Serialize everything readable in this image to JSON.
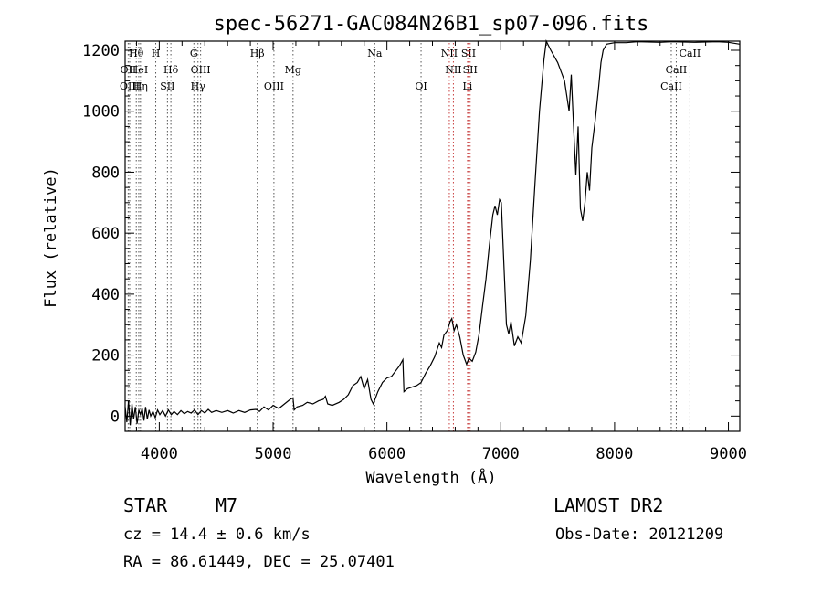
{
  "chart_data": {
    "type": "line",
    "title": "spec-56271-GAC084N26B1_sp07-096.fits",
    "xlabel": "Wavelength (Å)",
    "ylabel": "Flux (relative)",
    "xlim": [
      3700,
      9100
    ],
    "ylim": [
      -50,
      1230
    ],
    "x_ticks": [
      "4000",
      "5000",
      "6000",
      "7000",
      "8000",
      "9000"
    ],
    "y_ticks": [
      "0",
      "200",
      "400",
      "600",
      "800",
      "1000",
      "1200"
    ],
    "grid": false,
    "series": [
      {
        "color": "#000000",
        "points": [
          [
            3700,
            30
          ],
          [
            3715,
            -20
          ],
          [
            3730,
            50
          ],
          [
            3745,
            -30
          ],
          [
            3760,
            40
          ],
          [
            3775,
            -10
          ],
          [
            3790,
            30
          ],
          [
            3805,
            -25
          ],
          [
            3820,
            20
          ],
          [
            3835,
            5
          ],
          [
            3850,
            25
          ],
          [
            3865,
            -15
          ],
          [
            3880,
            30
          ],
          [
            3895,
            -10
          ],
          [
            3910,
            20
          ],
          [
            3925,
            0
          ],
          [
            3945,
            15
          ],
          [
            3965,
            -5
          ],
          [
            3985,
            20
          ],
          [
            4005,
            5
          ],
          [
            4030,
            18
          ],
          [
            4055,
            0
          ],
          [
            4080,
            20
          ],
          [
            4105,
            5
          ],
          [
            4130,
            15
          ],
          [
            4160,
            5
          ],
          [
            4190,
            18
          ],
          [
            4220,
            8
          ],
          [
            4250,
            15
          ],
          [
            4280,
            10
          ],
          [
            4310,
            20
          ],
          [
            4340,
            5
          ],
          [
            4370,
            18
          ],
          [
            4400,
            10
          ],
          [
            4430,
            22
          ],
          [
            4460,
            12
          ],
          [
            4500,
            18
          ],
          [
            4550,
            12
          ],
          [
            4600,
            18
          ],
          [
            4650,
            10
          ],
          [
            4700,
            18
          ],
          [
            4750,
            12
          ],
          [
            4800,
            20
          ],
          [
            4850,
            22
          ],
          [
            4880,
            15
          ],
          [
            4920,
            30
          ],
          [
            4960,
            20
          ],
          [
            5000,
            35
          ],
          [
            5050,
            25
          ],
          [
            5100,
            40
          ],
          [
            5150,
            55
          ],
          [
            5175,
            60
          ],
          [
            5185,
            20
          ],
          [
            5210,
            30
          ],
          [
            5260,
            35
          ],
          [
            5300,
            45
          ],
          [
            5350,
            40
          ],
          [
            5400,
            50
          ],
          [
            5440,
            55
          ],
          [
            5460,
            65
          ],
          [
            5480,
            40
          ],
          [
            5520,
            35
          ],
          [
            5580,
            45
          ],
          [
            5620,
            55
          ],
          [
            5660,
            70
          ],
          [
            5700,
            100
          ],
          [
            5740,
            110
          ],
          [
            5770,
            130
          ],
          [
            5800,
            90
          ],
          [
            5830,
            120
          ],
          [
            5860,
            55
          ],
          [
            5880,
            40
          ],
          [
            5920,
            80
          ],
          [
            5960,
            110
          ],
          [
            6000,
            125
          ],
          [
            6040,
            130
          ],
          [
            6080,
            150
          ],
          [
            6110,
            165
          ],
          [
            6140,
            185
          ],
          [
            6150,
            80
          ],
          [
            6180,
            90
          ],
          [
            6220,
            95
          ],
          [
            6260,
            100
          ],
          [
            6300,
            110
          ],
          [
            6340,
            140
          ],
          [
            6380,
            165
          ],
          [
            6420,
            195
          ],
          [
            6460,
            240
          ],
          [
            6480,
            225
          ],
          [
            6500,
            265
          ],
          [
            6530,
            280
          ],
          [
            6555,
            310
          ],
          [
            6570,
            320
          ],
          [
            6590,
            280
          ],
          [
            6610,
            300
          ],
          [
            6640,
            260
          ],
          [
            6670,
            200
          ],
          [
            6700,
            170
          ],
          [
            6720,
            190
          ],
          [
            6750,
            180
          ],
          [
            6780,
            210
          ],
          [
            6810,
            270
          ],
          [
            6840,
            360
          ],
          [
            6870,
            450
          ],
          [
            6900,
            560
          ],
          [
            6930,
            660
          ],
          [
            6950,
            690
          ],
          [
            6970,
            660
          ],
          [
            6990,
            710
          ],
          [
            7005,
            700
          ],
          [
            7025,
            520
          ],
          [
            7050,
            300
          ],
          [
            7070,
            270
          ],
          [
            7090,
            310
          ],
          [
            7120,
            230
          ],
          [
            7150,
            260
          ],
          [
            7180,
            240
          ],
          [
            7220,
            330
          ],
          [
            7260,
            510
          ],
          [
            7300,
            760
          ],
          [
            7340,
            1000
          ],
          [
            7380,
            1170
          ],
          [
            7400,
            1230
          ],
          [
            7440,
            1200
          ],
          [
            7500,
            1160
          ],
          [
            7540,
            1120
          ],
          [
            7560,
            1100
          ],
          [
            7600,
            1000
          ],
          [
            7620,
            1120
          ],
          [
            7640,
            950
          ],
          [
            7660,
            790
          ],
          [
            7680,
            950
          ],
          [
            7700,
            680
          ],
          [
            7720,
            640
          ],
          [
            7740,
            700
          ],
          [
            7760,
            800
          ],
          [
            7780,
            740
          ],
          [
            7800,
            880
          ],
          [
            7830,
            970
          ],
          [
            7860,
            1080
          ],
          [
            7880,
            1160
          ],
          [
            7900,
            1200
          ],
          [
            7930,
            1220
          ],
          [
            8000,
            1225
          ],
          [
            8100,
            1225
          ],
          [
            8200,
            1228
          ],
          [
            8400,
            1226
          ],
          [
            8500,
            1228
          ],
          [
            8700,
            1226
          ],
          [
            8900,
            1228
          ],
          [
            9000,
            1226
          ],
          [
            9100,
            1220
          ]
        ]
      }
    ],
    "emission_lines": [
      {
        "name": "Hθ",
        "wl": 3798,
        "row": 0,
        "color": "#555555"
      },
      {
        "name": "OII",
        "wl": 3727,
        "row": 1,
        "color": "#555555"
      },
      {
        "name": "OIII",
        "wl": 3740,
        "row": 2,
        "color": "#555555"
      },
      {
        "name": "HeI",
        "wl": 3820,
        "row": 1,
        "color": "#555555"
      },
      {
        "name": "Hη",
        "wl": 3835,
        "row": 2,
        "color": "#555555"
      },
      {
        "name": "H",
        "wl": 3969,
        "row": 0,
        "color": "#555555"
      },
      {
        "name": "Hδ",
        "wl": 4102,
        "row": 1,
        "color": "#555555"
      },
      {
        "name": "SII",
        "wl": 4072,
        "row": 2,
        "color": "#555555"
      },
      {
        "name": "G",
        "wl": 4304,
        "row": 0,
        "color": "#555555"
      },
      {
        "name": "OIII",
        "wl": 4363,
        "row": 1,
        "color": "#555555"
      },
      {
        "name": "Hγ",
        "wl": 4340,
        "row": 2,
        "color": "#555555"
      },
      {
        "name": "Hβ",
        "wl": 4861,
        "row": 0,
        "color": "#555555"
      },
      {
        "name": "Mg",
        "wl": 5175,
        "row": 1,
        "color": "#555555"
      },
      {
        "name": "OIII",
        "wl": 5007,
        "row": 2,
        "color": "#555555"
      },
      {
        "name": "Na",
        "wl": 5893,
        "row": 0,
        "color": "#555555"
      },
      {
        "name": "OI",
        "wl": 6300,
        "row": 2,
        "color": "#555555"
      },
      {
        "name": "NII",
        "wl": 6548,
        "row": 0,
        "color": "#c84040"
      },
      {
        "name": "NII",
        "wl": 6584,
        "row": 1,
        "color": "#c84040"
      },
      {
        "name": "SII",
        "wl": 6717,
        "row": 0,
        "color": "#c84040"
      },
      {
        "name": "SII",
        "wl": 6731,
        "row": 1,
        "color": "#c84040"
      },
      {
        "name": "Li",
        "wl": 6708,
        "row": 2,
        "color": "#c84040"
      },
      {
        "name": "CaII",
        "wl": 8662,
        "row": 0,
        "color": "#555555"
      },
      {
        "name": "CaII",
        "wl": 8542,
        "row": 1,
        "color": "#555555"
      },
      {
        "name": "CaII",
        "wl": 8498,
        "row": 2,
        "color": "#555555"
      }
    ]
  },
  "info": {
    "class": "STAR",
    "subclass": "M7",
    "survey": "LAMOST DR2",
    "cz": "cz = 14.4 ± 0.6 km/s",
    "obsdate": "Obs-Date: 20121209",
    "radec": "RA =  86.61449, DEC =  25.07401"
  }
}
